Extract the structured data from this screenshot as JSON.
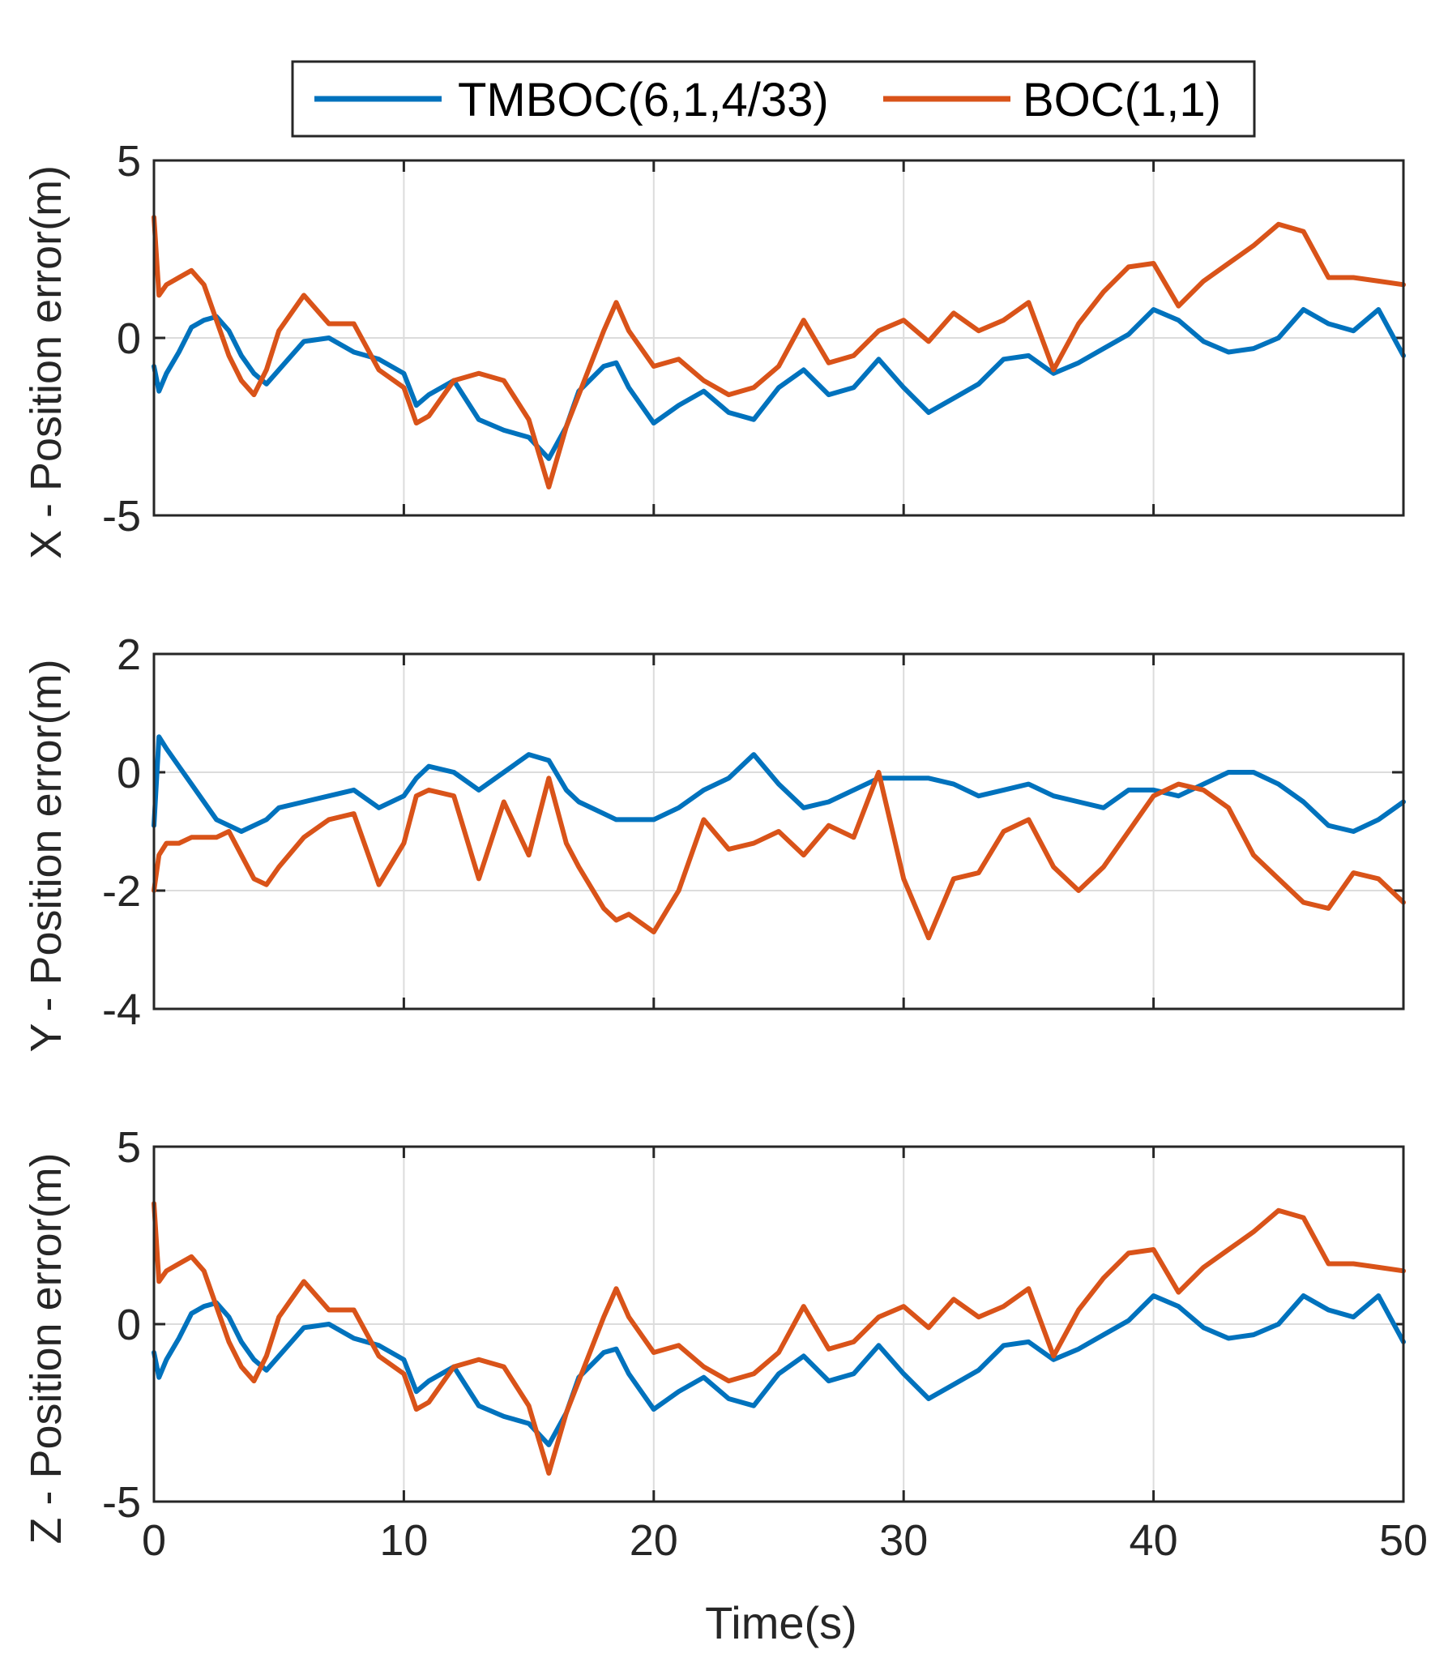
{
  "chart_data": [
    {
      "type": "line",
      "title": "",
      "xlabel": "",
      "ylabel": "X - Position error(m)",
      "xlim": [
        0,
        50
      ],
      "ylim": [
        -5,
        5
      ],
      "xticks": [
        "0",
        "10",
        "20",
        "30",
        "40",
        "50"
      ],
      "yticks": [
        "-5",
        "0",
        "5"
      ],
      "show_xtick_labels": false,
      "grid": true,
      "x": [
        0,
        0.2,
        0.5,
        1,
        1.5,
        2,
        2.5,
        3,
        3.5,
        4,
        4.5,
        5,
        6,
        7,
        8,
        9,
        10,
        10.5,
        11,
        12,
        13,
        14,
        15,
        15.8,
        16.5,
        17,
        18,
        18.5,
        19,
        20,
        21,
        22,
        23,
        24,
        25,
        26,
        27,
        28,
        29,
        30,
        31,
        32,
        33,
        34,
        35,
        36,
        37,
        38,
        39,
        40,
        41,
        42,
        43,
        44,
        45,
        46,
        47,
        48,
        49,
        50
      ],
      "series": [
        {
          "name": "TMBOC(6,1,4/33)",
          "color": "#0072BD",
          "values": [
            -0.8,
            -1.5,
            -1.0,
            -0.4,
            0.3,
            0.5,
            0.6,
            0.2,
            -0.5,
            -1.0,
            -1.3,
            -0.9,
            -0.1,
            0.0,
            -0.4,
            -0.6,
            -1.0,
            -1.9,
            -1.6,
            -1.2,
            -2.3,
            -2.6,
            -2.8,
            -3.4,
            -2.5,
            -1.5,
            -0.8,
            -0.7,
            -1.4,
            -2.4,
            -1.9,
            -1.5,
            -2.1,
            -2.3,
            -1.4,
            -0.9,
            -1.6,
            -1.4,
            -0.6,
            -1.4,
            -2.1,
            -1.7,
            -1.3,
            -0.6,
            -0.5,
            -1.0,
            -0.7,
            -0.3,
            0.1,
            0.8,
            0.5,
            -0.1,
            -0.4,
            -0.3,
            0.0,
            0.8,
            0.4,
            0.2,
            0.8,
            -0.5
          ]
        },
        {
          "name": "BOC(1,1)",
          "color": "#D95319",
          "values": [
            3.4,
            1.2,
            1.5,
            1.7,
            1.9,
            1.5,
            0.5,
            -0.5,
            -1.2,
            -1.6,
            -0.9,
            0.2,
            1.2,
            0.4,
            0.4,
            -0.9,
            -1.4,
            -2.4,
            -2.2,
            -1.2,
            -1.0,
            -1.2,
            -2.3,
            -4.2,
            -2.5,
            -1.6,
            0.2,
            1.0,
            0.2,
            -0.8,
            -0.6,
            -1.2,
            -1.6,
            -1.4,
            -0.8,
            0.5,
            -0.7,
            -0.5,
            0.2,
            0.5,
            -0.1,
            0.7,
            0.2,
            0.5,
            1.0,
            -0.9,
            0.4,
            1.3,
            2.0,
            2.1,
            0.9,
            1.6,
            2.1,
            2.6,
            3.2,
            3.0,
            1.7,
            1.7,
            1.6,
            1.5
          ]
        }
      ]
    },
    {
      "type": "line",
      "title": "",
      "xlabel": "",
      "ylabel": "Y - Position error(m)",
      "xlim": [
        0,
        50
      ],
      "ylim": [
        -4,
        2
      ],
      "xticks": [
        "0",
        "10",
        "20",
        "30",
        "40",
        "50"
      ],
      "yticks": [
        "-4",
        "-2",
        "0",
        "2"
      ],
      "show_xtick_labels": false,
      "grid": true,
      "x": [
        0,
        0.2,
        0.5,
        1,
        1.5,
        2,
        2.5,
        3,
        3.5,
        4,
        4.5,
        5,
        6,
        7,
        8,
        9,
        10,
        10.5,
        11,
        12,
        13,
        14,
        15,
        15.8,
        16.5,
        17,
        18,
        18.5,
        19,
        20,
        21,
        22,
        23,
        24,
        25,
        26,
        27,
        28,
        29,
        30,
        31,
        32,
        33,
        34,
        35,
        36,
        37,
        38,
        39,
        40,
        41,
        42,
        43,
        44,
        45,
        46,
        47,
        48,
        49,
        50
      ],
      "series": [
        {
          "name": "TMBOC(6,1,4/33)",
          "color": "#0072BD",
          "values": [
            -0.9,
            0.6,
            0.4,
            0.1,
            -0.2,
            -0.5,
            -0.8,
            -0.9,
            -1.0,
            -0.9,
            -0.8,
            -0.6,
            -0.5,
            -0.4,
            -0.3,
            -0.6,
            -0.4,
            -0.1,
            0.1,
            0.0,
            -0.3,
            0.0,
            0.3,
            0.2,
            -0.3,
            -0.5,
            -0.7,
            -0.8,
            -0.8,
            -0.8,
            -0.6,
            -0.3,
            -0.1,
            0.3,
            -0.2,
            -0.6,
            -0.5,
            -0.3,
            -0.1,
            -0.1,
            -0.1,
            -0.2,
            -0.4,
            -0.3,
            -0.2,
            -0.4,
            -0.5,
            -0.6,
            -0.3,
            -0.3,
            -0.4,
            -0.2,
            0.0,
            0.0,
            -0.2,
            -0.5,
            -0.9,
            -1.0,
            -0.8,
            -0.5
          ]
        },
        {
          "name": "BOC(1,1)",
          "color": "#D95319",
          "values": [
            -2.0,
            -1.4,
            -1.2,
            -1.2,
            -1.1,
            -1.1,
            -1.1,
            -1.0,
            -1.4,
            -1.8,
            -1.9,
            -1.6,
            -1.1,
            -0.8,
            -0.7,
            -1.9,
            -1.2,
            -0.4,
            -0.3,
            -0.4,
            -1.8,
            -0.5,
            -1.4,
            -0.1,
            -1.2,
            -1.6,
            -2.3,
            -2.5,
            -2.4,
            -2.7,
            -2.0,
            -0.8,
            -1.3,
            -1.2,
            -1.0,
            -1.4,
            -0.9,
            -1.1,
            0.0,
            -1.8,
            -2.8,
            -1.8,
            -1.7,
            -1.0,
            -0.8,
            -1.6,
            -2.0,
            -1.6,
            -1.0,
            -0.4,
            -0.2,
            -0.3,
            -0.6,
            -1.4,
            -1.8,
            -2.2,
            -2.3,
            -1.7,
            -1.8,
            -2.2
          ]
        }
      ]
    },
    {
      "type": "line",
      "title": "",
      "xlabel": "Time(s)",
      "ylabel": "Z - Position error(m)",
      "xlim": [
        0,
        50
      ],
      "ylim": [
        -5,
        5
      ],
      "xticks": [
        "0",
        "10",
        "20",
        "30",
        "40",
        "50"
      ],
      "yticks": [
        "-5",
        "0",
        "5"
      ],
      "show_xtick_labels": true,
      "grid": true,
      "x": [
        0,
        0.2,
        0.5,
        1,
        1.5,
        2,
        2.5,
        3,
        3.5,
        4,
        4.5,
        5,
        6,
        7,
        8,
        9,
        10,
        10.5,
        11,
        12,
        13,
        14,
        15,
        15.8,
        16.5,
        17,
        18,
        18.5,
        19,
        20,
        21,
        22,
        23,
        24,
        25,
        26,
        27,
        28,
        29,
        30,
        31,
        32,
        33,
        34,
        35,
        36,
        37,
        38,
        39,
        40,
        41,
        42,
        43,
        44,
        45,
        46,
        47,
        48,
        49,
        50
      ],
      "series": [
        {
          "name": "TMBOC(6,1,4/33)",
          "color": "#0072BD",
          "values": [
            -0.8,
            -1.5,
            -1.0,
            -0.4,
            0.3,
            0.5,
            0.6,
            0.2,
            -0.5,
            -1.0,
            -1.3,
            -0.9,
            -0.1,
            0.0,
            -0.4,
            -0.6,
            -1.0,
            -1.9,
            -1.6,
            -1.2,
            -2.3,
            -2.6,
            -2.8,
            -3.4,
            -2.5,
            -1.5,
            -0.8,
            -0.7,
            -1.4,
            -2.4,
            -1.9,
            -1.5,
            -2.1,
            -2.3,
            -1.4,
            -0.9,
            -1.6,
            -1.4,
            -0.6,
            -1.4,
            -2.1,
            -1.7,
            -1.3,
            -0.6,
            -0.5,
            -1.0,
            -0.7,
            -0.3,
            0.1,
            0.8,
            0.5,
            -0.1,
            -0.4,
            -0.3,
            0.0,
            0.8,
            0.4,
            0.2,
            0.8,
            -0.5
          ]
        },
        {
          "name": "BOC(1,1)",
          "color": "#D95319",
          "values": [
            3.4,
            1.2,
            1.5,
            1.7,
            1.9,
            1.5,
            0.5,
            -0.5,
            -1.2,
            -1.6,
            -0.9,
            0.2,
            1.2,
            0.4,
            0.4,
            -0.9,
            -1.4,
            -2.4,
            -2.2,
            -1.2,
            -1.0,
            -1.2,
            -2.3,
            -4.2,
            -2.5,
            -1.6,
            0.2,
            1.0,
            0.2,
            -0.8,
            -0.6,
            -1.2,
            -1.6,
            -1.4,
            -0.8,
            0.5,
            -0.7,
            -0.5,
            0.2,
            0.5,
            -0.1,
            0.7,
            0.2,
            0.5,
            1.0,
            -0.9,
            0.4,
            1.3,
            2.0,
            2.1,
            0.9,
            1.6,
            2.1,
            2.6,
            3.2,
            3.0,
            1.7,
            1.7,
            1.6,
            1.5
          ]
        }
      ]
    }
  ],
  "legend": {
    "placement": "top-center",
    "entries": [
      {
        "label": "TMBOC(6,1,4/33)",
        "color": "#0072BD"
      },
      {
        "label": "BOC(1,1)",
        "color": "#D95319"
      }
    ]
  }
}
